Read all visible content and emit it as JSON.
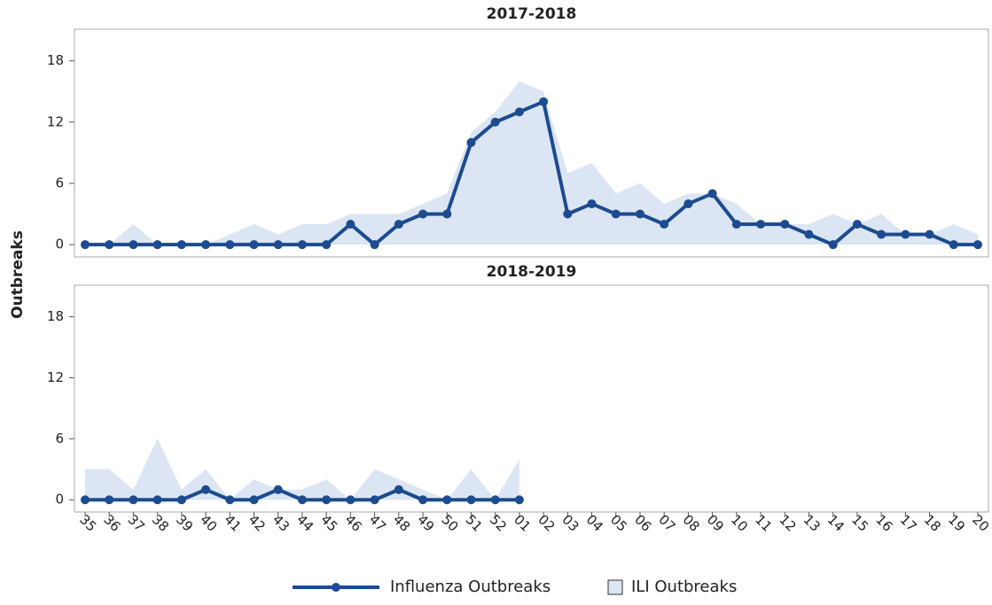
{
  "chart_data": [
    {
      "type": "line",
      "title": "2017-2018",
      "y_label": "Outbreaks",
      "ylim": [
        -1.2,
        21.1
      ],
      "yticks": [
        0,
        6,
        12,
        18
      ],
      "series": [
        {
          "name": "Influenza Outbreaks",
          "color": "#1c4b8f",
          "style": "line",
          "values": [
            0,
            0,
            0,
            0,
            0,
            0,
            0,
            0,
            0,
            0,
            0,
            2,
            0,
            2,
            3,
            3,
            10,
            12,
            13,
            14,
            3,
            4,
            3,
            3,
            2,
            4,
            5,
            2,
            2,
            2,
            1,
            0,
            2,
            1,
            1,
            1,
            0,
            0
          ]
        },
        {
          "name": "ILI Outbreaks",
          "color": "#dbe5f3",
          "style": "area",
          "values": [
            0,
            0,
            2,
            0,
            0,
            0,
            1,
            2,
            1,
            2,
            2,
            3,
            3,
            3,
            4,
            5,
            11,
            13,
            16,
            15,
            7,
            8,
            5,
            6,
            4,
            5,
            5,
            4,
            2,
            2,
            2,
            3,
            2,
            3,
            1,
            1,
            2,
            1
          ]
        }
      ]
    },
    {
      "type": "line",
      "title": "2018-2019",
      "ylim": [
        -1.2,
        21.1
      ],
      "yticks": [
        0,
        6,
        12,
        18
      ],
      "categories": [
        "35",
        "36",
        "37",
        "38",
        "39",
        "40",
        "41",
        "42",
        "43",
        "44",
        "45",
        "46",
        "47",
        "48",
        "49",
        "50",
        "51",
        "52",
        "01",
        "02",
        "03",
        "04",
        "05",
        "06",
        "07",
        "08",
        "09",
        "10",
        "11",
        "12",
        "13",
        "14",
        "15",
        "16",
        "17",
        "18",
        "19",
        "20"
      ],
      "series": [
        {
          "color": "#1c4b8f",
          "style": "line",
          "values": [
            0,
            0,
            0,
            0,
            0,
            1,
            0,
            0,
            1,
            0,
            0,
            0,
            0,
            1,
            0,
            0,
            0,
            0,
            0,
            null,
            null,
            null,
            null,
            null,
            null,
            null,
            null,
            null,
            null,
            null,
            null,
            null,
            null,
            null,
            null,
            null,
            null,
            null
          ]
        },
        {
          "color": "#dbe5f3",
          "style": "area",
          "values": [
            3,
            3,
            1,
            6,
            1,
            3,
            0,
            2,
            1,
            1,
            2,
            0,
            3,
            2,
            1,
            0,
            3,
            0,
            4,
            null,
            null,
            null,
            null,
            null,
            null,
            null,
            null,
            null,
            null,
            null,
            null,
            null,
            null,
            null,
            null,
            null,
            null,
            null
          ]
        }
      ]
    }
  ]
}
